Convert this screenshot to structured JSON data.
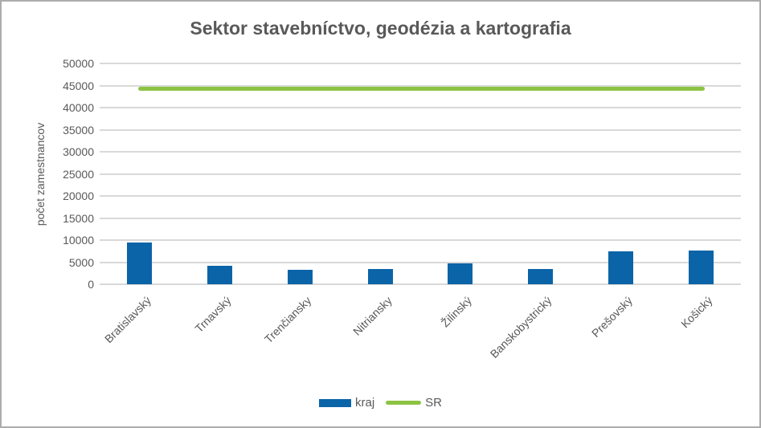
{
  "window": {
    "background_color": "#FFFFFF",
    "border_color": "#ACACAC"
  },
  "chart_data": {
    "type": "bar",
    "title": "Sektor stavebníctvo, geodézia a kartografia",
    "xlabel": "",
    "ylabel": "počet zamestnancov",
    "categories": [
      "Bratislavský",
      "Trnavský",
      "Trenčiansky",
      "Nitriansky",
      "Žilinský",
      "Banskobystrický",
      "Prešovský",
      "Košický"
    ],
    "series": [
      {
        "name": "kraj",
        "type": "bar",
        "color": "#0B64A8",
        "values": [
          9500,
          4200,
          3200,
          3500,
          4800,
          3500,
          7400,
          7600
        ]
      },
      {
        "name": "SR",
        "type": "line",
        "color": "#8CC342",
        "values": [
          44300,
          44300,
          44300,
          44300,
          44300,
          44300,
          44300,
          44300
        ]
      }
    ],
    "ylim": [
      0,
      50000
    ],
    "yticks": [
      0,
      5000,
      10000,
      15000,
      20000,
      25000,
      30000,
      35000,
      40000,
      45000,
      50000
    ],
    "grid": true,
    "gridline_color": "#D9D9D9",
    "text_color": "#595959",
    "legend_position": "bottom"
  }
}
